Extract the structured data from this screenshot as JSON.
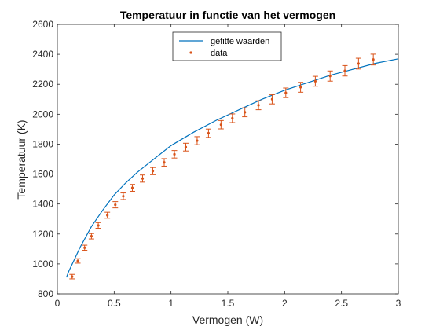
{
  "chart_data": {
    "type": "scatter",
    "title": "Temperatuur in functie van het vermogen",
    "xlabel": "Vermogen (W)",
    "ylabel": "Temperatuur (K)",
    "xlim": [
      0,
      3
    ],
    "ylim": [
      800,
      2600
    ],
    "xticks": [
      0,
      0.5,
      1,
      1.5,
      2,
      2.5,
      3
    ],
    "yticks": [
      800,
      1000,
      1200,
      1400,
      1600,
      1800,
      2000,
      2200,
      2400,
      2600
    ],
    "xtick_labels": [
      "0",
      "0.5",
      "1",
      "1.5",
      "2",
      "2.5",
      "3"
    ],
    "ytick_labels": [
      "800",
      "1000",
      "1200",
      "1400",
      "1600",
      "1800",
      "2000",
      "2200",
      "2400",
      "2600"
    ],
    "grid": false,
    "legend_position": "top-center",
    "series": [
      {
        "name": "gefitte waarden",
        "kind": "line",
        "color": "#0072BD",
        "x": [
          0.08,
          0.1,
          0.15,
          0.2,
          0.3,
          0.4,
          0.5,
          0.6,
          0.7,
          0.8,
          1.0,
          1.2,
          1.4,
          1.6,
          1.8,
          2.0,
          2.2,
          2.4,
          2.6,
          2.8,
          3.0
        ],
        "y": [
          910,
          950,
          1030,
          1110,
          1250,
          1360,
          1460,
          1540,
          1610,
          1670,
          1790,
          1880,
          1960,
          2030,
          2100,
          2160,
          2210,
          2260,
          2300,
          2340,
          2370
        ]
      },
      {
        "name": "data",
        "kind": "errorbar",
        "color": "#D95319",
        "x": [
          0.13,
          0.18,
          0.24,
          0.3,
          0.36,
          0.44,
          0.51,
          0.58,
          0.66,
          0.75,
          0.84,
          0.94,
          1.03,
          1.13,
          1.23,
          1.33,
          1.44,
          1.54,
          1.65,
          1.77,
          1.89,
          2.01,
          2.14,
          2.27,
          2.4,
          2.53,
          2.65,
          2.78
        ],
        "y": [
          915,
          1020,
          1108,
          1185,
          1257,
          1325,
          1395,
          1452,
          1508,
          1570,
          1620,
          1678,
          1732,
          1780,
          1823,
          1873,
          1930,
          1973,
          2013,
          2060,
          2100,
          2143,
          2180,
          2220,
          2255,
          2290,
          2338,
          2365
        ],
        "error": [
          15,
          15,
          17,
          18,
          19,
          20,
          21,
          22,
          23,
          24,
          24,
          25,
          25,
          26,
          27,
          28,
          28,
          29,
          30,
          30,
          31,
          32,
          33,
          33,
          34,
          35,
          36,
          36
        ]
      }
    ]
  }
}
